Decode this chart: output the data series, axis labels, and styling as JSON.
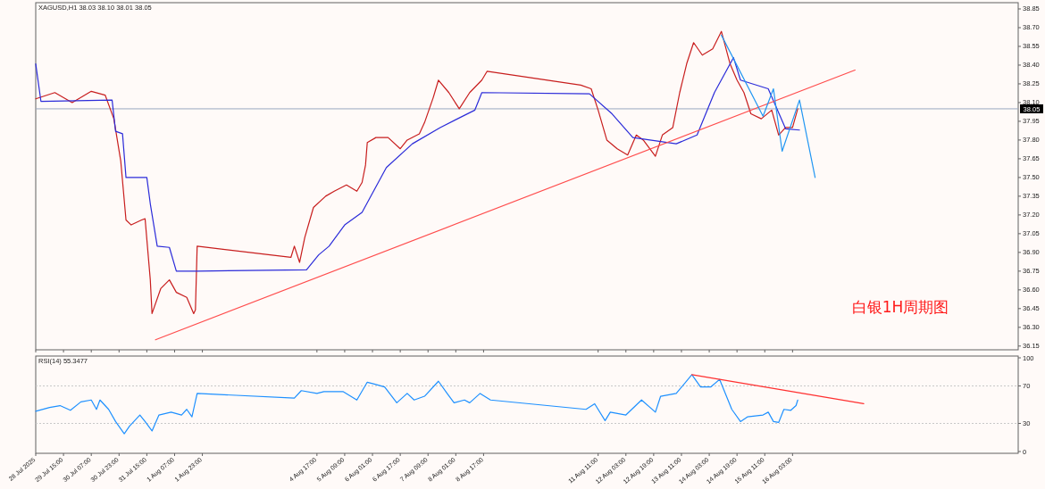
{
  "chart_data": [
    {
      "type": "line",
      "title": "XAGUSD,H1  38.03 38.10 38.01 38.05",
      "annotations": [
        "白银1H周期图"
      ],
      "xlim": [
        "2025-07-28T23:00",
        "2025-08-21T13:00"
      ],
      "ylim": [
        36.12,
        38.9
      ],
      "tick_labels": "y",
      "xticks": [
        {
          "value": "2025-07-28T23:00",
          "label": null
        },
        {
          "value": "2025-07-29T15:00",
          "label": null
        },
        {
          "value": "2025-07-30T07:00",
          "label": null
        },
        {
          "value": "2025-07-30T23:00",
          "label": null
        },
        {
          "value": "2025-07-31T15:00",
          "label": null
        },
        {
          "value": "2025-08-01T07:00",
          "label": null
        },
        {
          "value": "2025-08-01T23:00",
          "label": null
        },
        {
          "value": "2025-08-04T17:00",
          "label": null
        },
        {
          "value": "2025-08-05T09:00",
          "label": null
        },
        {
          "value": "2025-08-06T01:00",
          "label": null
        },
        {
          "value": "2025-08-06T17:00",
          "label": null
        },
        {
          "value": "2025-08-07T09:00",
          "label": null
        },
        {
          "value": "2025-08-08T01:00",
          "label": null
        },
        {
          "value": "2025-08-08T17:00",
          "label": null
        },
        {
          "value": "2025-08-11T11:00",
          "label": null
        },
        {
          "value": "2025-08-12T03:00",
          "label": null
        },
        {
          "value": "2025-08-12T19:00",
          "label": null
        },
        {
          "value": "2025-08-13T11:00",
          "label": null
        },
        {
          "value": "2025-08-14T03:00",
          "label": null
        },
        {
          "value": "2025-08-14T19:00",
          "label": null
        },
        {
          "value": "2025-08-15T11:00",
          "label": null
        },
        {
          "value": "2025-08-16T03:00",
          "label": null
        }
      ],
      "yticks": [
        {
          "value": 36.15,
          "label": "36.15"
        },
        {
          "value": 36.3,
          "label": "36.30"
        },
        {
          "value": 36.45,
          "label": "36.45"
        },
        {
          "value": 36.6,
          "label": "36.60"
        },
        {
          "value": 36.75,
          "label": "36.75"
        },
        {
          "value": 36.9,
          "label": "36.90"
        },
        {
          "value": 37.05,
          "label": "37.05"
        },
        {
          "value": 37.2,
          "label": "37.20"
        },
        {
          "value": 37.35,
          "label": "37.35"
        },
        {
          "value": 37.5,
          "label": "37.50"
        },
        {
          "value": 37.65,
          "label": "37.65"
        },
        {
          "value": 37.8,
          "label": "37.80"
        },
        {
          "value": 37.95,
          "label": "37.95"
        },
        {
          "value": 38.1,
          "label": "38.10"
        },
        {
          "value": 38.25,
          "label": "38.25"
        },
        {
          "value": 38.4,
          "label": "38.40"
        },
        {
          "value": 38.55,
          "label": "38.55"
        },
        {
          "value": 38.7,
          "label": "38.70"
        },
        {
          "value": 38.85,
          "label": "38.85"
        }
      ],
      "ref_lines": [
        {
          "axis": "y",
          "value": 38.05,
          "label": "38.05",
          "color": "#9aa8c0"
        }
      ],
      "series": [
        {
          "color": "#c81e1e",
          "x": [
            "2025-07-28T23:00",
            "2025-07-29T10:00",
            "2025-07-29T20:00",
            "2025-07-30T07:00",
            "2025-07-30T15:00",
            "2025-07-30T20:00",
            "2025-07-31T00:00",
            "2025-07-31T03:00",
            "2025-07-31T06:00",
            "2025-07-31T12:00",
            "2025-07-31T14:00",
            "2025-07-31T17:00",
            "2025-07-31T18:00",
            "2025-07-31T23:00",
            "2025-08-01T04:00",
            "2025-08-01T08:00",
            "2025-08-01T14:00",
            "2025-08-01T18:00",
            "2025-08-01T19:00",
            "2025-08-01T20:00",
            "2025-08-04T02:00",
            "2025-08-04T04:00",
            "2025-08-04T07:00",
            "2025-08-04T10:00",
            "2025-08-04T15:00",
            "2025-08-04T22:00",
            "2025-08-05T03:00",
            "2025-08-05T10:00",
            "2025-08-05T16:00",
            "2025-08-05T19:00",
            "2025-08-05T21:00",
            "2025-08-05T22:00",
            "2025-08-06T03:00",
            "2025-08-06T10:00",
            "2025-08-06T17:00",
            "2025-08-06T21:00",
            "2025-08-07T04:00",
            "2025-08-07T07:00",
            "2025-08-07T12:00",
            "2025-08-07T15:00",
            "2025-08-07T21:00",
            "2025-08-08T03:00",
            "2025-08-08T09:00",
            "2025-08-08T16:00",
            "2025-08-08T19:00",
            "2025-08-11T01:00",
            "2025-08-11T07:00",
            "2025-08-11T11:00",
            "2025-08-11T16:00",
            "2025-08-11T22:00",
            "2025-08-12T04:00",
            "2025-08-12T09:00",
            "2025-08-12T13:00",
            "2025-08-12T20:00",
            "2025-08-13T00:00",
            "2025-08-13T06:00",
            "2025-08-13T10:00",
            "2025-08-13T14:00",
            "2025-08-13T18:00",
            "2025-08-13T23:00",
            "2025-08-14T05:00",
            "2025-08-14T10:00",
            "2025-08-14T15:00",
            "2025-08-14T19:00",
            "2025-08-14T23:00",
            "2025-08-15T03:00",
            "2025-08-15T09:00",
            "2025-08-15T15:00",
            "2025-08-15T19:00",
            "2025-08-15T23:00",
            "2025-08-16T03:00",
            "2025-08-16T06:00"
          ],
          "values": [
            38.13,
            38.18,
            38.1,
            38.19,
            38.16,
            37.97,
            37.63,
            37.16,
            37.12,
            37.16,
            37.17,
            36.68,
            36.41,
            36.61,
            36.68,
            36.58,
            36.54,
            36.41,
            36.44,
            36.95,
            36.86,
            36.95,
            36.82,
            37.02,
            37.26,
            37.35,
            37.39,
            37.44,
            37.39,
            37.46,
            37.6,
            37.78,
            37.82,
            37.82,
            37.73,
            37.8,
            37.85,
            37.94,
            38.14,
            38.28,
            38.18,
            38.05,
            38.18,
            38.28,
            38.35,
            38.24,
            38.21,
            38.04,
            37.8,
            37.73,
            37.68,
            37.84,
            37.8,
            37.67,
            37.84,
            37.9,
            38.18,
            38.41,
            38.58,
            38.48,
            38.53,
            38.67,
            38.41,
            38.28,
            38.18,
            38.01,
            37.97,
            38.04,
            37.84,
            37.9,
            37.9,
            38.05
          ]
        },
        {
          "color": "#2b2bd9",
          "x": [
            "2025-07-28T23:00",
            "2025-07-29T02:00",
            "2025-07-30T19:00",
            "2025-07-30T21:00",
            "2025-07-31T01:00",
            "2025-07-31T03:00",
            "2025-07-31T15:00",
            "2025-07-31T17:00",
            "2025-07-31T21:00",
            "2025-08-01T04:00",
            "2025-08-01T08:00",
            "2025-08-01T20:00",
            "2025-08-04T11:00",
            "2025-08-04T18:00",
            "2025-08-05T00:00",
            "2025-08-05T09:00",
            "2025-08-05T19:00",
            "2025-08-06T09:00",
            "2025-08-07T00:00",
            "2025-08-07T16:00",
            "2025-08-08T12:00",
            "2025-08-08T16:00",
            "2025-08-11T06:00",
            "2025-08-11T19:00",
            "2025-08-12T07:00",
            "2025-08-13T08:00",
            "2025-08-13T20:00",
            "2025-08-14T06:00",
            "2025-08-14T17:00",
            "2025-08-14T21:00",
            "2025-08-15T13:00",
            "2025-08-15T23:00",
            "2025-08-16T07:00"
          ],
          "values": [
            38.41,
            38.11,
            38.12,
            37.87,
            37.85,
            37.5,
            37.5,
            37.29,
            36.95,
            36.94,
            36.75,
            36.75,
            36.76,
            36.88,
            36.95,
            37.12,
            37.22,
            37.58,
            37.77,
            37.9,
            38.04,
            38.18,
            38.17,
            38.01,
            37.82,
            37.77,
            37.84,
            38.18,
            38.46,
            38.28,
            38.21,
            37.89,
            37.88
          ]
        },
        {
          "color": "#ff4d4d",
          "x": [
            "2025-07-31T20:00",
            "2025-08-17T15:00"
          ],
          "values": [
            36.2,
            38.36
          ]
        },
        {
          "color": "#2196f3",
          "x": [
            "2025-08-14T10:00",
            "2025-08-15T10:00",
            "2025-08-15T16:00",
            "2025-08-15T21:00",
            "2025-08-16T07:00",
            "2025-08-16T16:00"
          ],
          "values": [
            38.64,
            37.99,
            38.21,
            37.71,
            38.12,
            37.5
          ]
        }
      ]
    },
    {
      "type": "line",
      "title": "RSI(14) 55.3477",
      "xlim": [
        "2025-07-28T23:00",
        "2025-08-21T13:00"
      ],
      "ylim": [
        0,
        100
      ],
      "xticks": [
        {
          "value": "2025-07-28T23:00",
          "label": "28 Jul 2025"
        },
        {
          "value": "2025-07-29T15:00",
          "label": "29 Jul 15:00"
        },
        {
          "value": "2025-07-30T07:00",
          "label": "30 Jul 07:00"
        },
        {
          "value": "2025-07-30T23:00",
          "label": "30 Jul 23:00"
        },
        {
          "value": "2025-07-31T15:00",
          "label": "31 Jul 15:00"
        },
        {
          "value": "2025-08-01T07:00",
          "label": "1 Aug 07:00"
        },
        {
          "value": "2025-08-01T23:00",
          "label": "1 Aug 23:00"
        },
        {
          "value": "2025-08-04T17:00",
          "label": "4 Aug 17:00"
        },
        {
          "value": "2025-08-05T09:00",
          "label": "5 Aug 09:00"
        },
        {
          "value": "2025-08-06T01:00",
          "label": "6 Aug 01:00"
        },
        {
          "value": "2025-08-06T17:00",
          "label": "6 Aug 17:00"
        },
        {
          "value": "2025-08-07T09:00",
          "label": "7 Aug 09:00"
        },
        {
          "value": "2025-08-08T01:00",
          "label": "8 Aug 01:00"
        },
        {
          "value": "2025-08-08T17:00",
          "label": "8 Aug 17:00"
        },
        {
          "value": "2025-08-11T11:00",
          "label": "11 Aug 11:00"
        },
        {
          "value": "2025-08-12T03:00",
          "label": "12 Aug 03:00"
        },
        {
          "value": "2025-08-12T19:00",
          "label": "12 Aug 19:00"
        },
        {
          "value": "2025-08-13T11:00",
          "label": "13 Aug 11:00"
        },
        {
          "value": "2025-08-14T03:00",
          "label": "14 Aug 03:00"
        },
        {
          "value": "2025-08-14T19:00",
          "label": "14 Aug 19:00"
        },
        {
          "value": "2025-08-15T11:00",
          "label": "15 Aug 11:00"
        },
        {
          "value": "2025-08-16T03:00",
          "label": "16 Aug 03:00"
        }
      ],
      "yticks": [
        0,
        30,
        70,
        100
      ],
      "ref_lines": [
        {
          "axis": "y",
          "value": 70,
          "color": "#c8c8c8",
          "line_style": "dotted"
        },
        {
          "axis": "y",
          "value": 30,
          "color": "#c8c8c8",
          "line_style": "dotted"
        }
      ],
      "series": [
        {
          "color": "#1e90ff",
          "x": [
            "2025-07-28T23:00",
            "2025-07-29T07:00",
            "2025-07-29T13:00",
            "2025-07-29T19:00",
            "2025-07-30T01:00",
            "2025-07-30T07:00",
            "2025-07-30T10:00",
            "2025-07-30T12:00",
            "2025-07-30T17:00",
            "2025-07-30T21:00",
            "2025-07-31T02:00",
            "2025-07-31T05:00",
            "2025-07-31T11:00",
            "2025-07-31T14:00",
            "2025-07-31T18:00",
            "2025-07-31T22:00",
            "2025-08-01T05:00",
            "2025-08-01T11:00",
            "2025-08-01T14:00",
            "2025-08-01T17:00",
            "2025-08-01T20:00",
            "2025-08-04T04:00",
            "2025-08-04T08:00",
            "2025-08-04T17:00",
            "2025-08-04T21:00",
            "2025-08-05T08:00",
            "2025-08-05T16:00",
            "2025-08-05T22:00",
            "2025-08-06T02:00",
            "2025-08-06T08:00",
            "2025-08-06T15:00",
            "2025-08-06T21:00",
            "2025-08-07T01:00",
            "2025-08-07T07:00",
            "2025-08-07T15:00",
            "2025-08-07T20:00",
            "2025-08-08T00:00",
            "2025-08-08T06:00",
            "2025-08-08T09:00",
            "2025-08-08T15:00",
            "2025-08-08T21:00",
            "2025-08-11T04:00",
            "2025-08-11T09:00",
            "2025-08-11T15:00",
            "2025-08-11T18:00",
            "2025-08-12T03:00",
            "2025-08-12T12:00",
            "2025-08-12T20:00",
            "2025-08-12T23:00",
            "2025-08-13T08:00",
            "2025-08-13T17:00",
            "2025-08-13T22:00",
            "2025-08-14T04:00",
            "2025-08-14T09:00",
            "2025-08-14T16:00",
            "2025-08-14T21:00",
            "2025-08-15T01:00",
            "2025-08-15T10:00",
            "2025-08-15T13:00",
            "2025-08-15T16:00",
            "2025-08-15T19:00",
            "2025-08-15T22:00",
            "2025-08-16T02:00",
            "2025-08-16T05:00",
            "2025-08-16T06:00"
          ],
          "values": [
            43,
            47,
            49,
            44,
            53,
            55,
            45,
            55,
            45,
            32,
            19,
            27,
            39,
            32,
            22,
            39,
            42,
            39,
            45,
            37,
            62,
            57,
            65,
            62,
            64,
            64,
            55,
            74,
            72,
            69,
            52,
            62,
            55,
            59,
            75,
            62,
            52,
            55,
            52,
            62,
            55,
            45,
            51,
            33,
            42,
            39,
            55,
            42,
            59,
            62,
            82,
            69,
            69,
            77,
            45,
            32,
            37,
            39,
            42,
            32,
            31,
            45,
            44,
            49,
            55
          ]
        },
        {
          "color": "#ff3030",
          "x": [
            "2025-08-13T17:00",
            "2025-08-17T20:00"
          ],
          "values": [
            82,
            51
          ]
        }
      ]
    }
  ]
}
